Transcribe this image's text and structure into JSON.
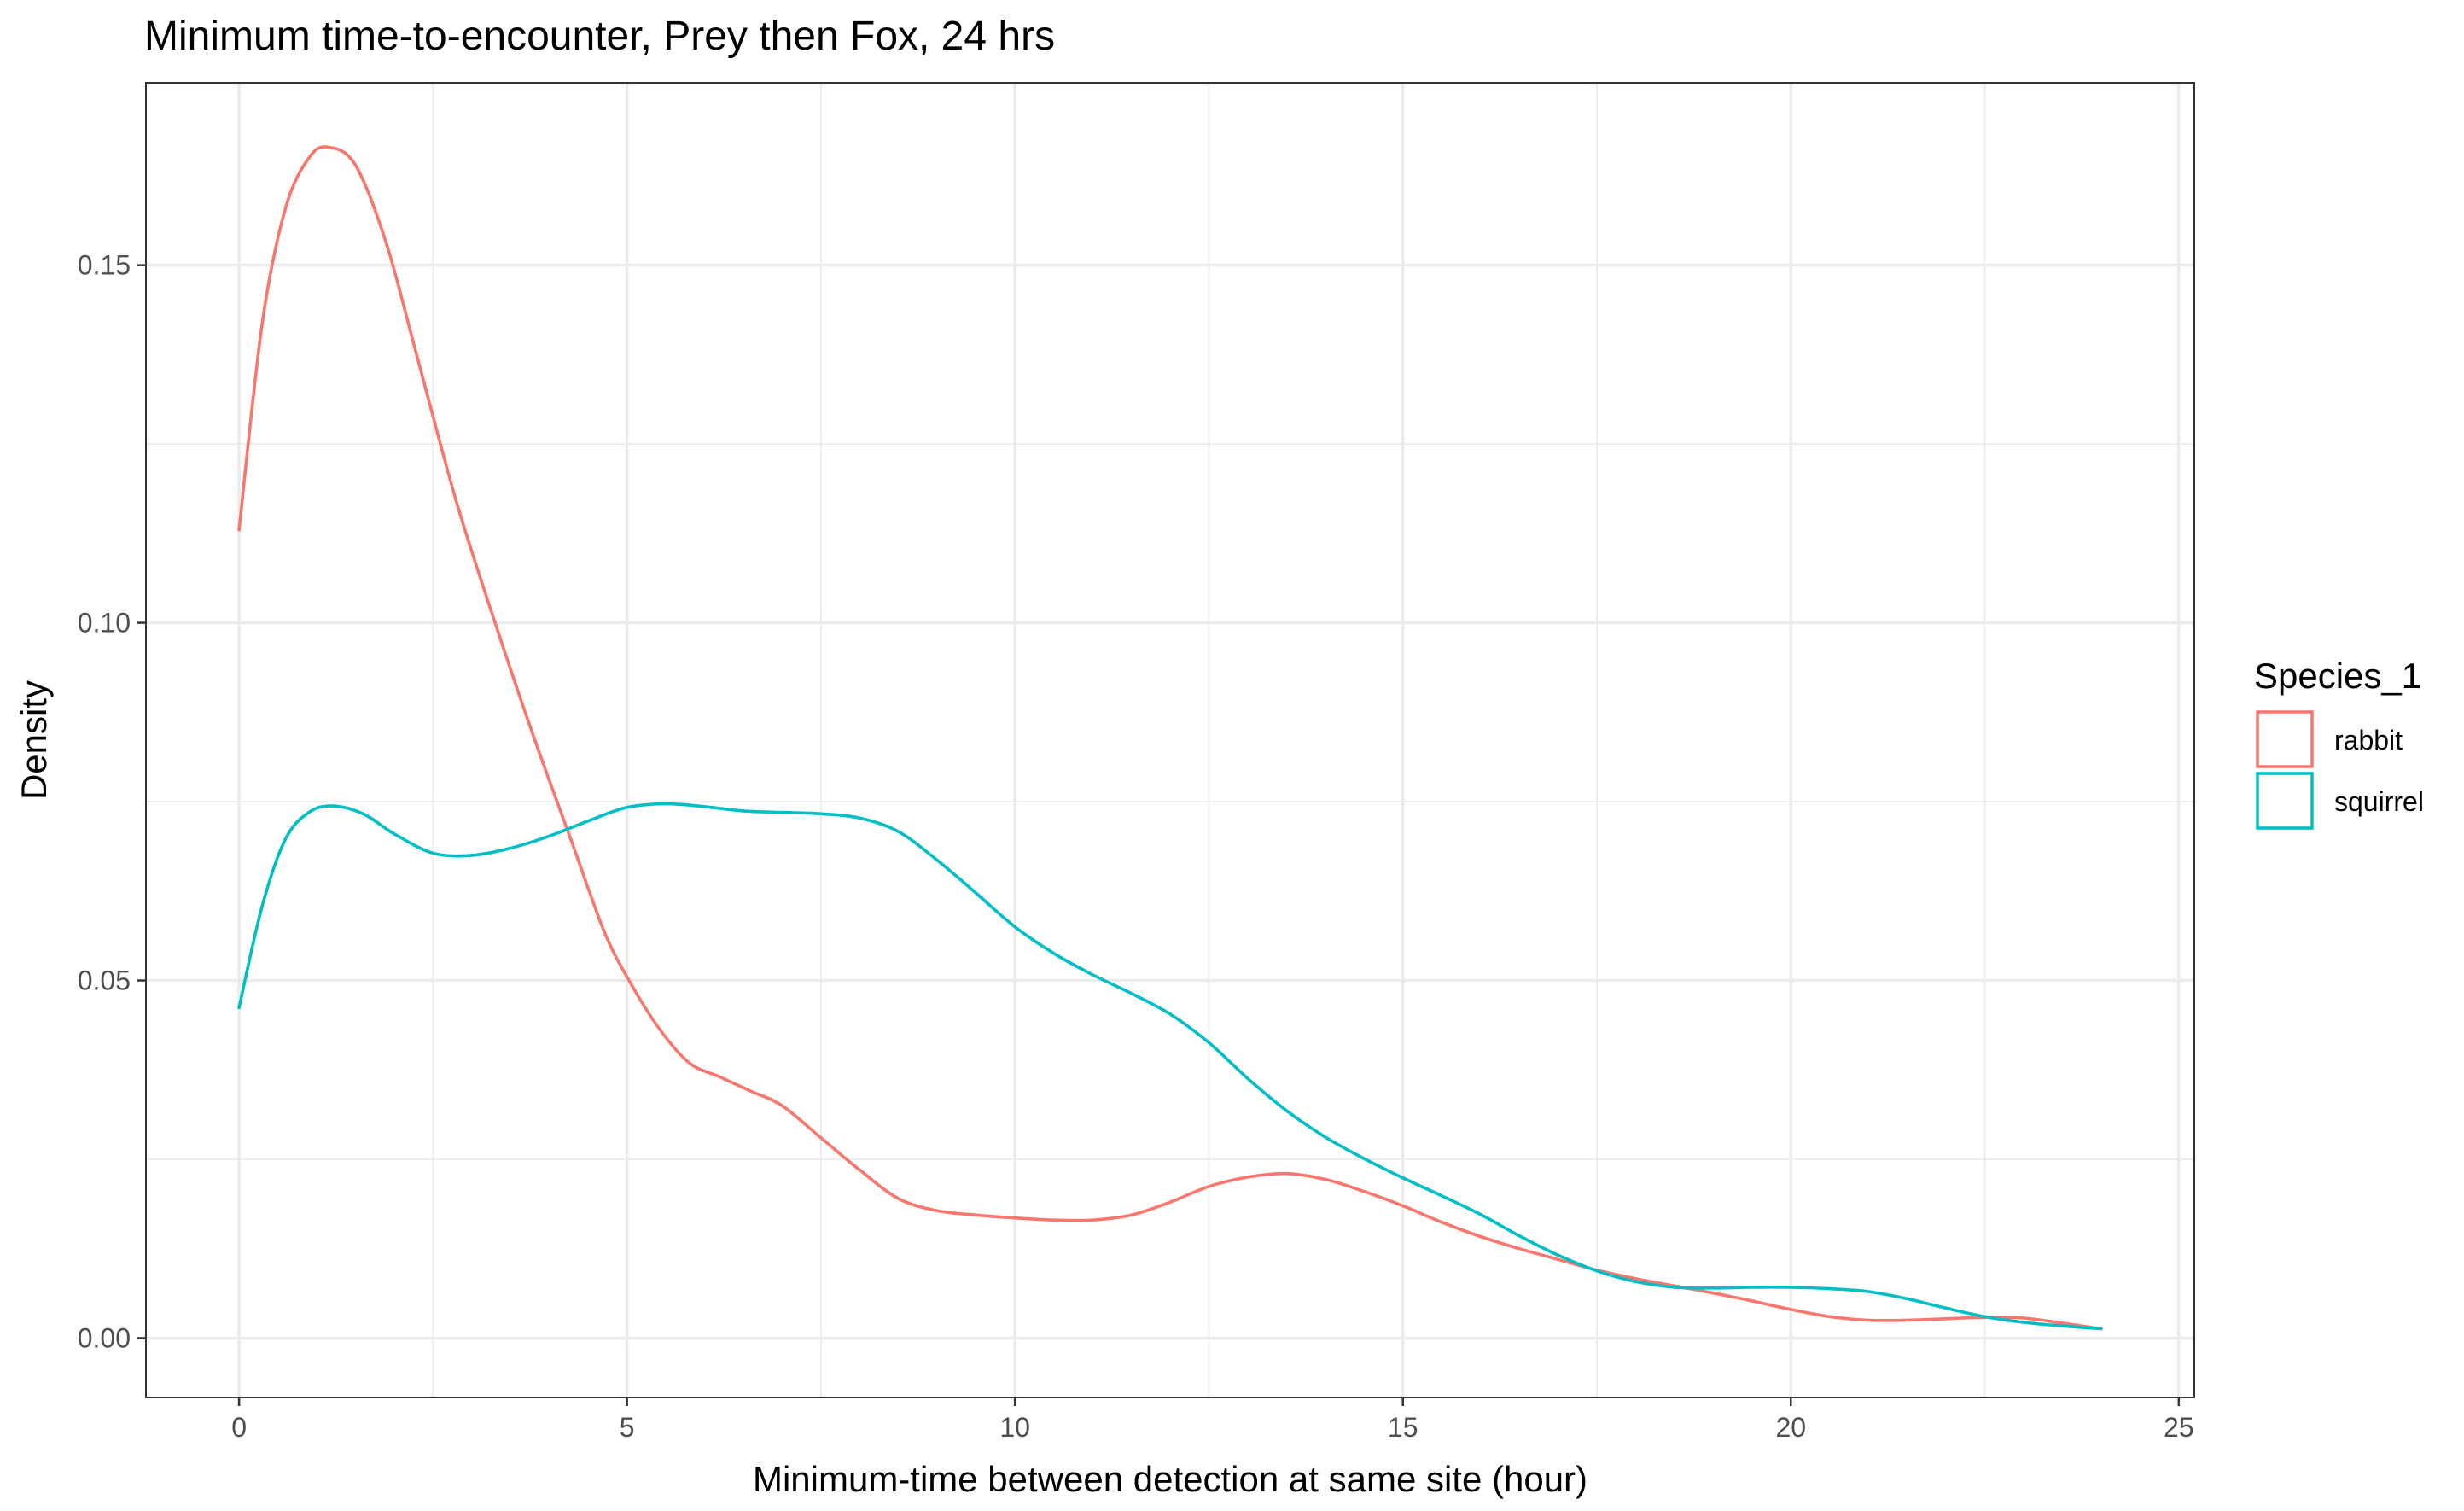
{
  "chart_data": {
    "type": "line",
    "title": "Minimum time-to-encounter, Prey then Fox, 24 hrs",
    "xlabel": "Minimum-time between detection at same site (hour)",
    "ylabel": "Density",
    "xlim": [
      -1.2,
      25.2
    ],
    "ylim": [
      -0.0083,
      0.1755
    ],
    "x_ticks": [
      0,
      5,
      10,
      15,
      20,
      25
    ],
    "y_ticks": [
      0.0,
      0.05,
      0.1,
      0.15
    ],
    "x_tick_labels": [
      "0",
      "5",
      "10",
      "15",
      "20",
      "25"
    ],
    "y_tick_labels": [
      "0.00",
      "0.05",
      "0.10",
      "0.15"
    ],
    "grid": true,
    "legend": {
      "title": "Species_1",
      "position": "right"
    },
    "series": [
      {
        "name": "rabbit",
        "color": "#F8766D",
        "x": [
          0,
          0.3,
          0.6,
          0.9,
          1.15,
          1.5,
          1.9,
          2.3,
          2.8,
          3.3,
          3.8,
          4.3,
          4.7,
          5.0,
          5.4,
          5.8,
          6.2,
          6.6,
          7.0,
          7.5,
          8.0,
          8.5,
          9.0,
          9.5,
          10.0,
          10.5,
          11.0,
          11.5,
          12.0,
          12.5,
          13.0,
          13.5,
          14.0,
          14.5,
          15.0,
          15.5,
          16.0,
          16.5,
          17.0,
          17.5,
          18.0,
          18.5,
          19.0,
          19.5,
          20.0,
          20.5,
          21.0,
          21.5,
          22.0,
          22.5,
          23.0,
          23.5,
          24.0
        ],
        "y": [
          0.113,
          0.142,
          0.158,
          0.165,
          0.1665,
          0.164,
          0.153,
          0.137,
          0.117,
          0.1,
          0.084,
          0.069,
          0.057,
          0.0505,
          0.0435,
          0.0385,
          0.0365,
          0.0345,
          0.0325,
          0.028,
          0.0235,
          0.0195,
          0.0178,
          0.0172,
          0.0168,
          0.0165,
          0.0165,
          0.0172,
          0.019,
          0.0212,
          0.0225,
          0.023,
          0.0222,
          0.0205,
          0.0185,
          0.0162,
          0.0142,
          0.0125,
          0.011,
          0.0095,
          0.0083,
          0.0073,
          0.0063,
          0.0052,
          0.004,
          0.003,
          0.0025,
          0.0025,
          0.0027,
          0.0029,
          0.0028,
          0.0021,
          0.0013
        ]
      },
      {
        "name": "squirrel",
        "color": "#00BFC4",
        "x": [
          0,
          0.3,
          0.6,
          0.9,
          1.2,
          1.6,
          2.0,
          2.5,
          3.0,
          3.5,
          4.0,
          4.5,
          5.0,
          5.5,
          6.0,
          6.5,
          7.0,
          7.5,
          8.0,
          8.5,
          9.0,
          9.5,
          10.0,
          10.5,
          11.0,
          11.5,
          12.0,
          12.5,
          13.0,
          13.5,
          14.0,
          14.5,
          15.0,
          15.5,
          16.0,
          16.5,
          17.0,
          17.5,
          18.0,
          18.5,
          19.0,
          19.5,
          20.0,
          20.5,
          21.0,
          21.5,
          22.0,
          22.5,
          23.0,
          23.5,
          24.0
        ],
        "y": [
          0.0462,
          0.0605,
          0.0698,
          0.0735,
          0.0744,
          0.0733,
          0.0705,
          0.0678,
          0.0675,
          0.0685,
          0.0702,
          0.0723,
          0.0742,
          0.0747,
          0.0743,
          0.0737,
          0.0735,
          0.0733,
          0.0727,
          0.0708,
          0.0668,
          0.0622,
          0.0575,
          0.0538,
          0.0508,
          0.0482,
          0.0453,
          0.0413,
          0.0363,
          0.0318,
          0.0281,
          0.0251,
          0.0224,
          0.0199,
          0.0173,
          0.0143,
          0.0116,
          0.0094,
          0.0079,
          0.0071,
          0.007,
          0.0071,
          0.0071,
          0.0069,
          0.0065,
          0.0055,
          0.0042,
          0.003,
          0.0022,
          0.0017,
          0.0013
        ]
      }
    ]
  }
}
